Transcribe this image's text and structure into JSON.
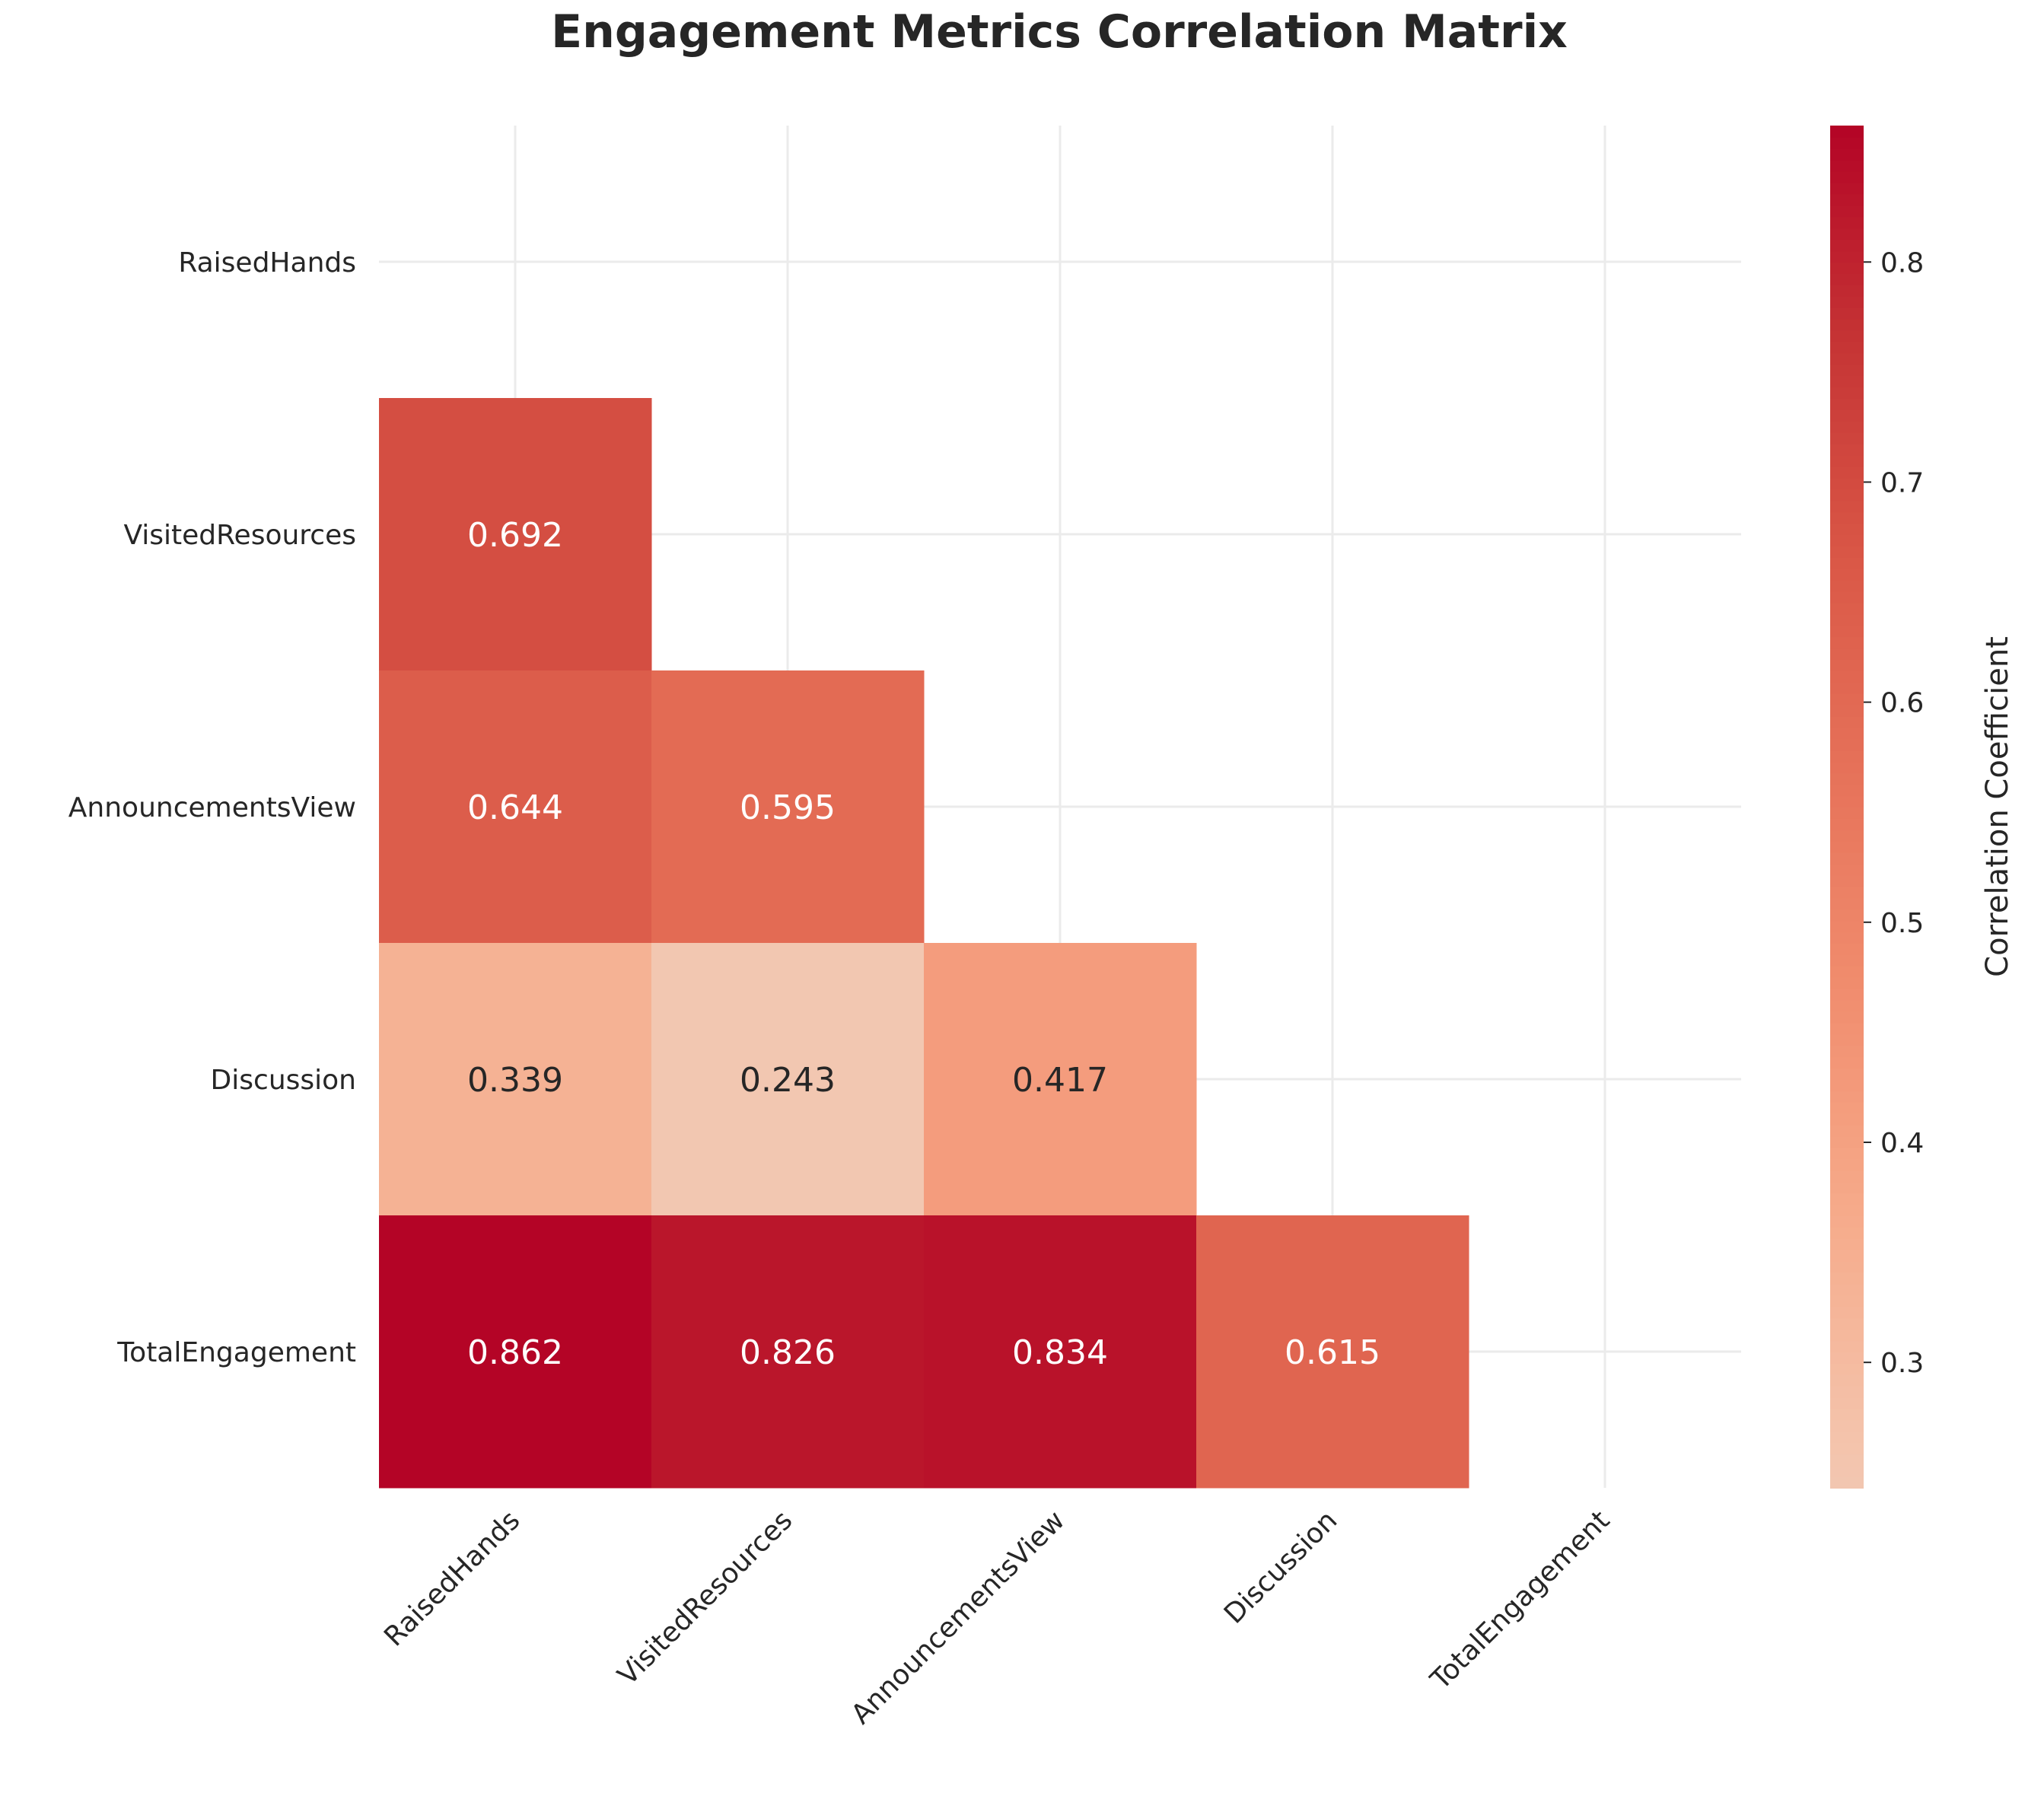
{
  "chart_data": {
    "type": "heatmap",
    "title": "Engagement Metrics Correlation Matrix",
    "xlabel": "",
    "ylabel": "",
    "variables": [
      "RaisedHands",
      "VisitedResources",
      "AnnouncementsView",
      "Discussion",
      "TotalEngagement"
    ],
    "matrix": [
      [
        null,
        null,
        null,
        null,
        null
      ],
      [
        0.692,
        null,
        null,
        null,
        null
      ],
      [
        0.644,
        0.595,
        null,
        null,
        null
      ],
      [
        0.339,
        0.243,
        0.417,
        null,
        null
      ],
      [
        0.862,
        0.826,
        0.834,
        0.615,
        null
      ]
    ],
    "mask": "upper-triangle-and-diagonal",
    "colormap": "coolwarm (upper half)",
    "colorbar": {
      "label": "Correlation Coefficient",
      "range": [
        0.243,
        0.862
      ],
      "ticks": [
        "0.3",
        "0.4",
        "0.5",
        "0.6",
        "0.7",
        "0.8"
      ],
      "tick_values": [
        0.3,
        0.4,
        0.5,
        0.6,
        0.7,
        0.8
      ],
      "color_low": "#f6c0a7",
      "color_high": "#b40426"
    },
    "grid": true,
    "annotation_light_color": "#ffffff",
    "annotation_dark_color": "#262626"
  }
}
